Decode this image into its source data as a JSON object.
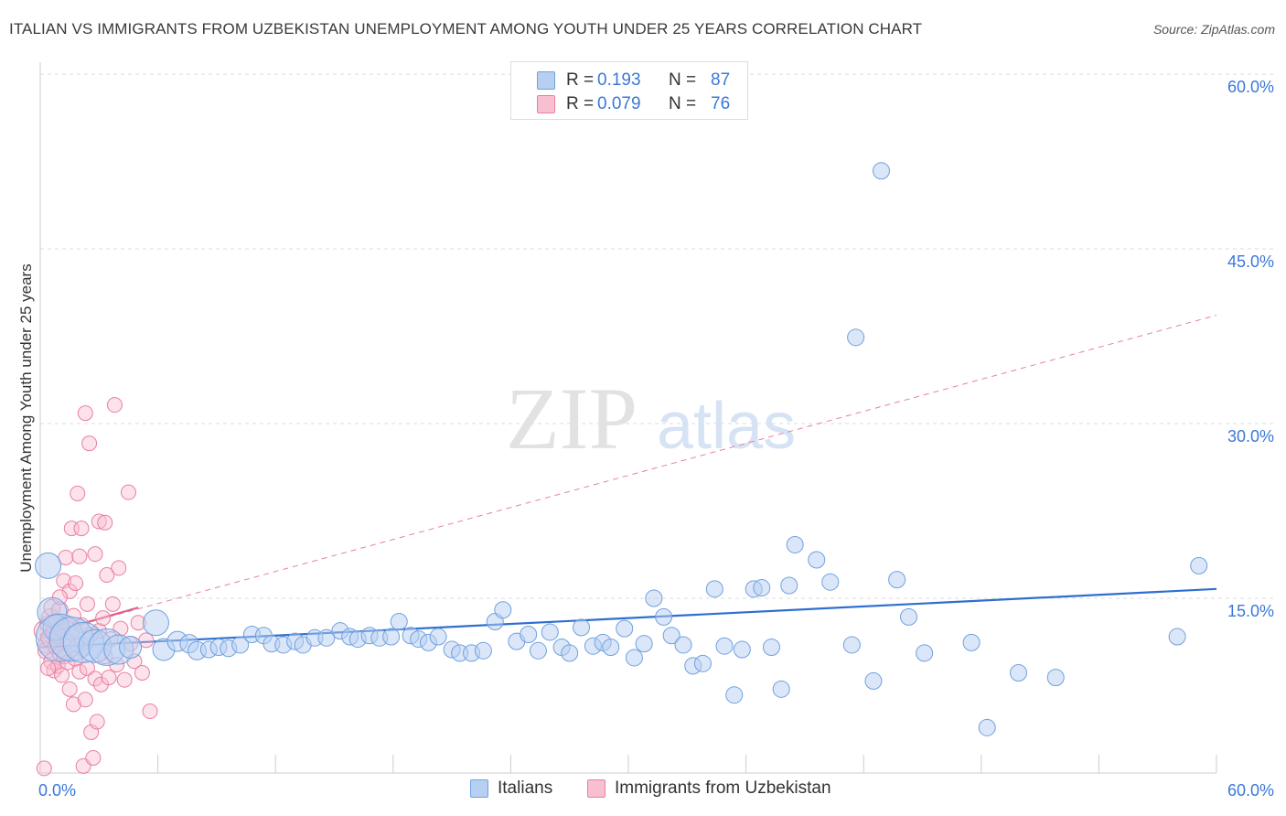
{
  "title": "ITALIAN VS IMMIGRANTS FROM UZBEKISTAN UNEMPLOYMENT AMONG YOUTH UNDER 25 YEARS CORRELATION CHART",
  "source": "Source: ZipAtlas.com",
  "colors": {
    "blue_fill": "#b7d0f2",
    "blue_stroke": "#6fa1de",
    "blue_line": "#2e6fd0",
    "pink_fill": "#f8bfd1",
    "pink_stroke": "#ea7fa2",
    "pink_line": "#e0608c",
    "axis_label": "#3b78d8",
    "grid": "#dddddd"
  },
  "legend_top": {
    "rows": [
      {
        "r_label": "R =",
        "r_value": "0.193",
        "n_label": "N =",
        "n_value": "87"
      },
      {
        "r_label": "R =",
        "r_value": "0.079",
        "n_label": "N =",
        "n_value": "76"
      }
    ]
  },
  "legend_bottom": {
    "italians": "Italians",
    "uzbekistan": "Immigrants from Uzbekistan"
  },
  "watermark": {
    "part1": "ZIP",
    "part2": "atlas"
  },
  "chart_data": {
    "type": "scatter",
    "title": "ITALIAN VS IMMIGRANTS FROM UZBEKISTAN UNEMPLOYMENT AMONG YOUTH UNDER 25 YEARS CORRELATION CHART",
    "xlabel": "",
    "ylabel": "Unemployment Among Youth under 25 years",
    "xlim": [
      0,
      60
    ],
    "ylim": [
      0,
      60
    ],
    "x_tick_labels": [
      {
        "value": 0,
        "label": "0.0%"
      },
      {
        "value": 60,
        "label": "60.0%"
      }
    ],
    "y_tick_labels": [
      {
        "value": 15,
        "label": "15.0%"
      },
      {
        "value": 30,
        "label": "30.0%"
      },
      {
        "value": 45,
        "label": "45.0%"
      },
      {
        "value": 60,
        "label": "60.0%"
      }
    ],
    "grid": true,
    "series": [
      {
        "name": "Italians",
        "r": 0.193,
        "n": 87,
        "trend": {
          "x0": 0,
          "y0": 10.8,
          "x1": 60,
          "y1": 15.8,
          "style": "solid"
        },
        "points": [
          {
            "x": 0.4,
            "y": 17.8,
            "s": 14
          },
          {
            "x": 0.6,
            "y": 13.8,
            "s": 16
          },
          {
            "x": 0.8,
            "y": 12.5,
            "s": 14
          },
          {
            "x": 1.0,
            "y": 11.6,
            "s": 26
          },
          {
            "x": 1.6,
            "y": 11.5,
            "s": 24
          },
          {
            "x": 2.2,
            "y": 11.2,
            "s": 22
          },
          {
            "x": 2.8,
            "y": 10.9,
            "s": 18
          },
          {
            "x": 3.4,
            "y": 10.8,
            "s": 20
          },
          {
            "x": 4.0,
            "y": 10.6,
            "s": 16
          },
          {
            "x": 4.6,
            "y": 10.8,
            "s": 12
          },
          {
            "x": 5.9,
            "y": 12.9,
            "s": 14
          },
          {
            "x": 6.3,
            "y": 10.6,
            "s": 12
          },
          {
            "x": 7.0,
            "y": 11.3,
            "s": 11
          },
          {
            "x": 7.6,
            "y": 11.1,
            "s": 10
          },
          {
            "x": 8.0,
            "y": 10.5,
            "s": 10
          },
          {
            "x": 8.6,
            "y": 10.6,
            "s": 9
          },
          {
            "x": 9.1,
            "y": 10.8,
            "s": 9
          },
          {
            "x": 9.6,
            "y": 10.7,
            "s": 9
          },
          {
            "x": 10.2,
            "y": 11.0,
            "s": 9
          },
          {
            "x": 10.8,
            "y": 11.9,
            "s": 9
          },
          {
            "x": 11.4,
            "y": 11.8,
            "s": 9
          },
          {
            "x": 11.8,
            "y": 11.1,
            "s": 9
          },
          {
            "x": 12.4,
            "y": 11.0,
            "s": 9
          },
          {
            "x": 13.0,
            "y": 11.3,
            "s": 9
          },
          {
            "x": 13.4,
            "y": 11.0,
            "s": 9
          },
          {
            "x": 14.0,
            "y": 11.6,
            "s": 9
          },
          {
            "x": 14.6,
            "y": 11.6,
            "s": 9
          },
          {
            "x": 15.3,
            "y": 12.2,
            "s": 9
          },
          {
            "x": 15.8,
            "y": 11.7,
            "s": 9
          },
          {
            "x": 16.2,
            "y": 11.5,
            "s": 9
          },
          {
            "x": 16.8,
            "y": 11.8,
            "s": 9
          },
          {
            "x": 17.3,
            "y": 11.6,
            "s": 9
          },
          {
            "x": 17.9,
            "y": 11.7,
            "s": 9
          },
          {
            "x": 18.3,
            "y": 13.0,
            "s": 9
          },
          {
            "x": 18.9,
            "y": 11.8,
            "s": 9
          },
          {
            "x": 19.3,
            "y": 11.5,
            "s": 9
          },
          {
            "x": 19.8,
            "y": 11.2,
            "s": 9
          },
          {
            "x": 20.3,
            "y": 11.7,
            "s": 9
          },
          {
            "x": 21.0,
            "y": 10.6,
            "s": 9
          },
          {
            "x": 21.4,
            "y": 10.3,
            "s": 9
          },
          {
            "x": 22.0,
            "y": 10.3,
            "s": 9
          },
          {
            "x": 22.6,
            "y": 10.5,
            "s": 9
          },
          {
            "x": 23.2,
            "y": 13.0,
            "s": 9
          },
          {
            "x": 23.6,
            "y": 14.0,
            "s": 9
          },
          {
            "x": 24.3,
            "y": 11.3,
            "s": 9
          },
          {
            "x": 24.9,
            "y": 11.9,
            "s": 9
          },
          {
            "x": 25.4,
            "y": 10.5,
            "s": 9
          },
          {
            "x": 26.0,
            "y": 12.1,
            "s": 9
          },
          {
            "x": 26.6,
            "y": 10.8,
            "s": 9
          },
          {
            "x": 27.0,
            "y": 10.3,
            "s": 9
          },
          {
            "x": 27.6,
            "y": 12.5,
            "s": 9
          },
          {
            "x": 28.2,
            "y": 10.9,
            "s": 9
          },
          {
            "x": 28.7,
            "y": 11.2,
            "s": 9
          },
          {
            "x": 29.1,
            "y": 10.8,
            "s": 9
          },
          {
            "x": 29.8,
            "y": 12.4,
            "s": 9
          },
          {
            "x": 30.3,
            "y": 9.9,
            "s": 9
          },
          {
            "x": 30.8,
            "y": 11.1,
            "s": 9
          },
          {
            "x": 31.3,
            "y": 15.0,
            "s": 9
          },
          {
            "x": 31.8,
            "y": 13.4,
            "s": 9
          },
          {
            "x": 32.2,
            "y": 11.8,
            "s": 9
          },
          {
            "x": 32.8,
            "y": 11.0,
            "s": 9
          },
          {
            "x": 33.3,
            "y": 9.2,
            "s": 9
          },
          {
            "x": 33.8,
            "y": 9.4,
            "s": 9
          },
          {
            "x": 34.4,
            "y": 15.8,
            "s": 9
          },
          {
            "x": 34.9,
            "y": 10.9,
            "s": 9
          },
          {
            "x": 35.4,
            "y": 6.7,
            "s": 9
          },
          {
            "x": 35.8,
            "y": 10.6,
            "s": 9
          },
          {
            "x": 36.4,
            "y": 15.8,
            "s": 9
          },
          {
            "x": 36.8,
            "y": 15.9,
            "s": 9
          },
          {
            "x": 37.3,
            "y": 10.8,
            "s": 9
          },
          {
            "x": 37.8,
            "y": 7.2,
            "s": 9
          },
          {
            "x": 38.2,
            "y": 16.1,
            "s": 9
          },
          {
            "x": 38.5,
            "y": 19.6,
            "s": 9
          },
          {
            "x": 39.6,
            "y": 18.3,
            "s": 9
          },
          {
            "x": 40.3,
            "y": 16.4,
            "s": 9
          },
          {
            "x": 41.4,
            "y": 11.0,
            "s": 9
          },
          {
            "x": 41.6,
            "y": 37.4,
            "s": 9
          },
          {
            "x": 42.5,
            "y": 7.9,
            "s": 9
          },
          {
            "x": 42.9,
            "y": 51.7,
            "s": 9
          },
          {
            "x": 43.7,
            "y": 16.6,
            "s": 9
          },
          {
            "x": 44.3,
            "y": 13.4,
            "s": 9
          },
          {
            "x": 45.1,
            "y": 10.3,
            "s": 9
          },
          {
            "x": 47.5,
            "y": 11.2,
            "s": 9
          },
          {
            "x": 48.3,
            "y": 3.9,
            "s": 9
          },
          {
            "x": 49.9,
            "y": 8.6,
            "s": 9
          },
          {
            "x": 51.8,
            "y": 8.2,
            "s": 9
          },
          {
            "x": 58.0,
            "y": 11.7,
            "s": 9
          },
          {
            "x": 59.1,
            "y": 17.8,
            "s": 9
          }
        ]
      },
      {
        "name": "Immigrants from Uzbekistan",
        "r": 0.079,
        "n": 76,
        "trend": {
          "x0": 0,
          "y0": 11.8,
          "x1": 60,
          "y1": 39.3,
          "style": "dashed",
          "solid_x1": 5.0,
          "solid_y1": 14.2
        },
        "points": [
          {
            "x": 0.2,
            "y": 12.2,
            "s": 11
          },
          {
            "x": 0.3,
            "y": 11.0,
            "s": 9
          },
          {
            "x": 0.3,
            "y": 10.5,
            "s": 9
          },
          {
            "x": 0.4,
            "y": 12.8,
            "s": 9
          },
          {
            "x": 0.5,
            "y": 11.6,
            "s": 10
          },
          {
            "x": 0.5,
            "y": 13.4,
            "s": 9
          },
          {
            "x": 0.6,
            "y": 9.6,
            "s": 9
          },
          {
            "x": 0.6,
            "y": 14.2,
            "s": 9
          },
          {
            "x": 0.7,
            "y": 12.0,
            "s": 9
          },
          {
            "x": 0.7,
            "y": 8.8,
            "s": 8
          },
          {
            "x": 0.8,
            "y": 10.9,
            "s": 9
          },
          {
            "x": 0.8,
            "y": 13.0,
            "s": 9
          },
          {
            "x": 0.9,
            "y": 9.2,
            "s": 8
          },
          {
            "x": 0.9,
            "y": 11.8,
            "s": 9
          },
          {
            "x": 1.0,
            "y": 14.0,
            "s": 9
          },
          {
            "x": 1.0,
            "y": 10.2,
            "s": 8
          },
          {
            "x": 1.1,
            "y": 12.4,
            "s": 9
          },
          {
            "x": 1.1,
            "y": 8.4,
            "s": 8
          },
          {
            "x": 1.2,
            "y": 16.5,
            "s": 8
          },
          {
            "x": 1.2,
            "y": 10.0,
            "s": 8
          },
          {
            "x": 1.3,
            "y": 12.9,
            "s": 8
          },
          {
            "x": 1.3,
            "y": 18.5,
            "s": 8
          },
          {
            "x": 1.4,
            "y": 9.5,
            "s": 8
          },
          {
            "x": 1.4,
            "y": 11.3,
            "s": 8
          },
          {
            "x": 1.5,
            "y": 7.2,
            "s": 8
          },
          {
            "x": 1.5,
            "y": 15.6,
            "s": 8
          },
          {
            "x": 1.6,
            "y": 21.0,
            "s": 8
          },
          {
            "x": 1.6,
            "y": 12.0,
            "s": 8
          },
          {
            "x": 1.7,
            "y": 5.9,
            "s": 8
          },
          {
            "x": 1.7,
            "y": 13.5,
            "s": 8
          },
          {
            "x": 1.8,
            "y": 9.8,
            "s": 8
          },
          {
            "x": 1.8,
            "y": 16.3,
            "s": 8
          },
          {
            "x": 1.9,
            "y": 24.0,
            "s": 8
          },
          {
            "x": 1.9,
            "y": 11.0,
            "s": 8
          },
          {
            "x": 2.0,
            "y": 18.6,
            "s": 8
          },
          {
            "x": 2.0,
            "y": 8.7,
            "s": 8
          },
          {
            "x": 2.1,
            "y": 12.7,
            "s": 8
          },
          {
            "x": 2.1,
            "y": 21.0,
            "s": 8
          },
          {
            "x": 2.2,
            "y": 0.6,
            "s": 8
          },
          {
            "x": 2.2,
            "y": 10.6,
            "s": 8
          },
          {
            "x": 2.3,
            "y": 30.9,
            "s": 8
          },
          {
            "x": 2.4,
            "y": 14.5,
            "s": 8
          },
          {
            "x": 2.4,
            "y": 9.0,
            "s": 8
          },
          {
            "x": 2.5,
            "y": 28.3,
            "s": 8
          },
          {
            "x": 2.6,
            "y": 3.5,
            "s": 8
          },
          {
            "x": 2.6,
            "y": 11.9,
            "s": 8
          },
          {
            "x": 2.7,
            "y": 1.3,
            "s": 8
          },
          {
            "x": 2.8,
            "y": 18.8,
            "s": 8
          },
          {
            "x": 2.8,
            "y": 8.1,
            "s": 8
          },
          {
            "x": 2.9,
            "y": 4.4,
            "s": 8
          },
          {
            "x": 3.0,
            "y": 12.2,
            "s": 8
          },
          {
            "x": 3.0,
            "y": 21.6,
            "s": 8
          },
          {
            "x": 3.1,
            "y": 7.6,
            "s": 8
          },
          {
            "x": 3.2,
            "y": 13.3,
            "s": 8
          },
          {
            "x": 3.3,
            "y": 21.5,
            "s": 8
          },
          {
            "x": 3.3,
            "y": 10.0,
            "s": 8
          },
          {
            "x": 3.4,
            "y": 17.0,
            "s": 8
          },
          {
            "x": 3.5,
            "y": 8.2,
            "s": 8
          },
          {
            "x": 3.6,
            "y": 11.5,
            "s": 8
          },
          {
            "x": 3.7,
            "y": 14.5,
            "s": 8
          },
          {
            "x": 3.8,
            "y": 31.6,
            "s": 8
          },
          {
            "x": 3.9,
            "y": 9.3,
            "s": 8
          },
          {
            "x": 4.0,
            "y": 17.6,
            "s": 8
          },
          {
            "x": 4.1,
            "y": 12.4,
            "s": 8
          },
          {
            "x": 4.3,
            "y": 8.0,
            "s": 8
          },
          {
            "x": 4.5,
            "y": 24.1,
            "s": 8
          },
          {
            "x": 4.6,
            "y": 11.1,
            "s": 8
          },
          {
            "x": 4.8,
            "y": 9.6,
            "s": 8
          },
          {
            "x": 5.0,
            "y": 12.9,
            "s": 8
          },
          {
            "x": 5.2,
            "y": 8.6,
            "s": 8
          },
          {
            "x": 5.4,
            "y": 11.4,
            "s": 8
          },
          {
            "x": 5.6,
            "y": 5.3,
            "s": 8
          },
          {
            "x": 0.4,
            "y": 9.0,
            "s": 8
          },
          {
            "x": 1.0,
            "y": 15.1,
            "s": 8
          },
          {
            "x": 2.3,
            "y": 6.3,
            "s": 8
          },
          {
            "x": 0.2,
            "y": 0.4,
            "s": 8
          }
        ]
      }
    ]
  }
}
